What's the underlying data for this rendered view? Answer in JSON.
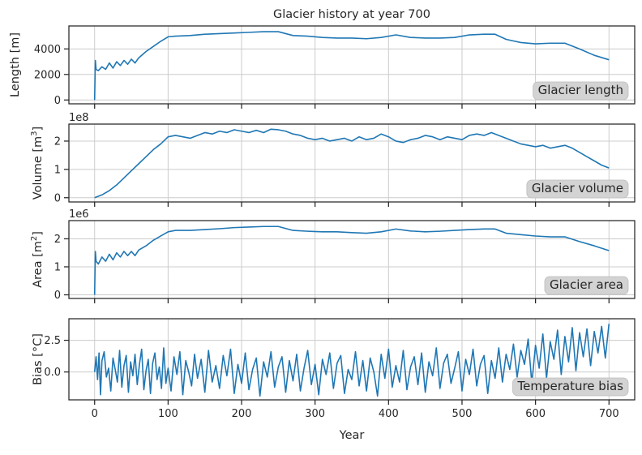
{
  "chart_data": {
    "title": "Glacier history at year 700",
    "xlabel": "Year",
    "xlim": [
      -35,
      735
    ],
    "x_ticks": [
      0,
      100,
      200,
      300,
      400,
      500,
      600,
      700
    ],
    "x_tick_labels": [
      "0",
      "100",
      "200",
      "300",
      "400",
      "500",
      "600",
      "700"
    ],
    "grid": true,
    "line_color": "#1f77b4",
    "badge_color": "#d3d3d3",
    "panels": [
      {
        "type": "line",
        "ylabel": "Length [m]",
        "ylabel_main": "Length [m]",
        "ylabel_sup": "",
        "ylabel_end": "",
        "multiplier": "",
        "legend": "Glacier length",
        "legend_placement": "bottom-right",
        "ylim": [
          -300,
          5800
        ],
        "y_ticks": [
          0,
          2000,
          4000
        ],
        "y_tick_labels": [
          "0",
          "2000",
          "4000"
        ],
        "series": [
          {
            "values_x": [
              0,
              1,
              2,
              5,
              10,
              15,
              20,
              25,
              30,
              35,
              40,
              45,
              50,
              55,
              60,
              70,
              80,
              90,
              100,
              110,
              130,
              150,
              170,
              190,
              210,
              230,
              250,
              270,
              290,
              310,
              330,
              350,
              370,
              390,
              410,
              430,
              450,
              470,
              490,
              510,
              530,
              545,
              560,
              580,
              600,
              620,
              640,
              660,
              680,
              700
            ],
            "values_y": [
              0,
              3100,
              2400,
              2300,
              2600,
              2400,
              2900,
              2500,
              3000,
              2700,
              3100,
              2800,
              3200,
              2900,
              3300,
              3800,
              4200,
              4600,
              4950,
              5000,
              5050,
              5150,
              5200,
              5250,
              5300,
              5350,
              5350,
              5050,
              5000,
              4900,
              4850,
              4850,
              4800,
              4900,
              5100,
              4900,
              4850,
              4850,
              4900,
              5100,
              5150,
              5150,
              4750,
              4500,
              4400,
              4450,
              4450,
              4000,
              3500,
              3150
            ]
          }
        ]
      },
      {
        "type": "line",
        "ylabel": "Volume [m3]",
        "ylabel_main": "Volume [m",
        "ylabel_sup": "3",
        "ylabel_end": "]",
        "multiplier": "1e8",
        "legend": "Glacier volume",
        "legend_placement": "bottom-right",
        "ylim": [
          -0.15,
          2.6
        ],
        "y_ticks": [
          0,
          1,
          2
        ],
        "y_tick_labels": [
          "0",
          "1",
          "2"
        ],
        "series": [
          {
            "values_x": [
              0,
              10,
              20,
              30,
              40,
              50,
              60,
              70,
              80,
              90,
              100,
              110,
              120,
              130,
              140,
              150,
              160,
              170,
              180,
              190,
              200,
              210,
              220,
              230,
              240,
              250,
              260,
              270,
              280,
              290,
              300,
              310,
              320,
              330,
              340,
              350,
              360,
              370,
              380,
              390,
              400,
              410,
              420,
              430,
              440,
              450,
              460,
              470,
              480,
              490,
              500,
              510,
              520,
              530,
              540,
              550,
              560,
              570,
              580,
              590,
              600,
              610,
              620,
              630,
              640,
              650,
              660,
              670,
              680,
              690,
              700
            ],
            "values_y": [
              0.0,
              0.1,
              0.25,
              0.45,
              0.7,
              0.95,
              1.2,
              1.45,
              1.7,
              1.9,
              2.15,
              2.2,
              2.15,
              2.1,
              2.2,
              2.3,
              2.25,
              2.35,
              2.3,
              2.4,
              2.35,
              2.3,
              2.38,
              2.3,
              2.42,
              2.4,
              2.35,
              2.25,
              2.2,
              2.1,
              2.05,
              2.1,
              2.0,
              2.05,
              2.1,
              2.0,
              2.15,
              2.05,
              2.1,
              2.25,
              2.15,
              2.0,
              1.95,
              2.05,
              2.1,
              2.2,
              2.15,
              2.05,
              2.15,
              2.1,
              2.05,
              2.2,
              2.25,
              2.2,
              2.3,
              2.2,
              2.1,
              2.0,
              1.9,
              1.85,
              1.8,
              1.85,
              1.75,
              1.8,
              1.85,
              1.75,
              1.6,
              1.45,
              1.3,
              1.15,
              1.05
            ]
          }
        ]
      },
      {
        "type": "line",
        "ylabel": "Area [m2]",
        "ylabel_main": "Area [m",
        "ylabel_sup": "2",
        "ylabel_end": "]",
        "multiplier": "1e6",
        "legend": "Glacier area",
        "legend_placement": "bottom-right",
        "ylim": [
          -0.13,
          2.65
        ],
        "y_ticks": [
          0,
          1,
          2
        ],
        "y_tick_labels": [
          "0",
          "1",
          "2"
        ],
        "series": [
          {
            "values_x": [
              0,
              1,
              2,
              5,
              10,
              15,
              20,
              25,
              30,
              35,
              40,
              45,
              50,
              55,
              60,
              70,
              80,
              90,
              100,
              110,
              130,
              150,
              170,
              190,
              210,
              230,
              250,
              270,
              290,
              310,
              330,
              350,
              370,
              390,
              410,
              430,
              450,
              470,
              490,
              510,
              530,
              545,
              560,
              580,
              600,
              620,
              640,
              660,
              680,
              700
            ],
            "values_y": [
              0.0,
              1.55,
              1.2,
              1.1,
              1.35,
              1.2,
              1.45,
              1.25,
              1.5,
              1.35,
              1.55,
              1.4,
              1.55,
              1.4,
              1.6,
              1.75,
              1.95,
              2.1,
              2.25,
              2.3,
              2.3,
              2.33,
              2.36,
              2.4,
              2.42,
              2.44,
              2.44,
              2.3,
              2.27,
              2.25,
              2.25,
              2.22,
              2.2,
              2.25,
              2.35,
              2.28,
              2.25,
              2.27,
              2.3,
              2.33,
              2.35,
              2.35,
              2.2,
              2.15,
              2.1,
              2.07,
              2.07,
              1.9,
              1.75,
              1.58
            ]
          }
        ]
      },
      {
        "type": "line",
        "ylabel": "Bias [°C]",
        "ylabel_main": "Bias [°C]",
        "ylabel_sup": "",
        "ylabel_end": "",
        "multiplier": "",
        "legend": "Temperature bias",
        "legend_placement": "bottom-right",
        "ylim": [
          -2.2,
          4.2
        ],
        "y_ticks": [
          0,
          2.5
        ],
        "y_tick_labels": [
          "0.0",
          "2.5"
        ],
        "series": [
          {
            "values_x": [
              0,
              2,
              4,
              6,
              8,
              10,
              13,
              16,
              19,
              22,
              25,
              28,
              31,
              34,
              37,
              40,
              43,
              46,
              49,
              52,
              55,
              58,
              61,
              64,
              67,
              70,
              73,
              76,
              79,
              82,
              85,
              88,
              91,
              94,
              97,
              100,
              104,
              108,
              112,
              116,
              120,
              124,
              128,
              132,
              136,
              140,
              145,
              150,
              155,
              160,
              165,
              170,
              175,
              180,
              185,
              190,
              195,
              200,
              205,
              210,
              215,
              220,
              225,
              230,
              235,
              240,
              245,
              250,
              255,
              260,
              265,
              270,
              275,
              280,
              285,
              290,
              295,
              300,
              305,
              310,
              315,
              320,
              325,
              330,
              335,
              340,
              345,
              350,
              355,
              360,
              365,
              370,
              375,
              380,
              385,
              390,
              395,
              400,
              405,
              410,
              415,
              420,
              425,
              430,
              435,
              440,
              445,
              450,
              455,
              460,
              465,
              470,
              475,
              480,
              485,
              490,
              495,
              500,
              505,
              510,
              515,
              520,
              525,
              530,
              535,
              540,
              545,
              550,
              555,
              560,
              565,
              570,
              575,
              580,
              585,
              590,
              595,
              600,
              605,
              610,
              615,
              620,
              625,
              630,
              635,
              640,
              645,
              650,
              655,
              660,
              665,
              670,
              675,
              680,
              685,
              690,
              695,
              700
            ],
            "values_y": [
              0.0,
              1.2,
              -0.6,
              1.5,
              -1.8,
              0.9,
              1.6,
              -0.4,
              0.3,
              -1.5,
              1.1,
              0.2,
              -0.8,
              1.7,
              -1.2,
              0.5,
              1.3,
              -1.6,
              0.8,
              -0.3,
              1.4,
              -1.0,
              0.6,
              1.8,
              -1.4,
              0.1,
              1.0,
              -1.7,
              0.7,
              1.5,
              -0.6,
              0.4,
              -1.3,
              1.9,
              -0.9,
              0.3,
              -1.5,
              1.2,
              -0.2,
              1.6,
              -1.8,
              0.9,
              0.0,
              -1.1,
              1.4,
              -0.5,
              1.0,
              -1.6,
              1.7,
              -0.8,
              0.5,
              -1.3,
              1.3,
              -0.3,
              1.8,
              -1.7,
              0.6,
              -0.9,
              1.5,
              -1.4,
              0.2,
              1.1,
              -1.9,
              0.8,
              -0.4,
              1.6,
              -1.2,
              0.4,
              1.2,
              -1.6,
              0.9,
              -0.7,
              1.4,
              -1.5,
              0.3,
              1.7,
              -1.0,
              0.6,
              -1.8,
              1.0,
              -0.2,
              1.5,
              -1.3,
              0.7,
              1.3,
              -1.7,
              0.2,
              -0.6,
              1.6,
              -1.1,
              0.9,
              -1.5,
              1.1,
              0.0,
              -1.9,
              1.4,
              -0.5,
              1.8,
              -1.2,
              0.5,
              -0.8,
              1.7,
              -1.4,
              0.4,
              1.2,
              -1.0,
              1.5,
              -1.6,
              0.8,
              -0.3,
              1.9,
              -1.3,
              0.7,
              1.4,
              -0.9,
              0.3,
              1.6,
              -1.5,
              1.0,
              -0.2,
              1.8,
              -1.1,
              0.6,
              1.3,
              -1.7,
              0.9,
              -0.5,
              1.9,
              -0.8,
              1.4,
              0.2,
              2.2,
              -0.4,
              1.7,
              0.6,
              2.6,
              -0.9,
              2.1,
              0.3,
              3.0,
              -0.5,
              2.4,
              1.0,
              3.3,
              -0.2,
              2.8,
              0.8,
              3.5,
              0.1,
              3.1,
              1.2,
              3.4,
              0.5,
              3.2,
              1.5,
              3.6,
              1.1,
              3.8
            ]
          }
        ]
      }
    ]
  }
}
